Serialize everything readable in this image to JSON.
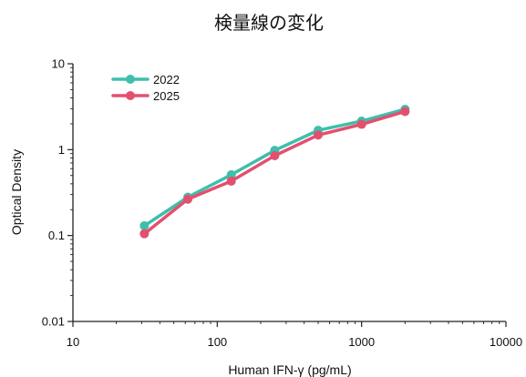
{
  "chart_data": {
    "type": "line",
    "title": "検量線の変化",
    "xlabel": "Human IFN-γ (pg/mL)",
    "ylabel": "Optical Density",
    "xscale": "log",
    "yscale": "log",
    "xlim": [
      10,
      10000
    ],
    "ylim": [
      0.01,
      10
    ],
    "x_ticks": [
      "10",
      "100",
      "1000",
      "10000"
    ],
    "y_ticks": [
      "0.01",
      "0.1",
      "1",
      "10"
    ],
    "grid": false,
    "legend_position": "top-left",
    "x": [
      31.25,
      62.5,
      125,
      250,
      500,
      1000,
      2000
    ],
    "series": [
      {
        "name": "2022",
        "color": "#3dbfac",
        "values": [
          0.13,
          0.28,
          0.51,
          0.98,
          1.68,
          2.15,
          2.95
        ]
      },
      {
        "name": "2025",
        "color": "#e3506e",
        "values": [
          0.105,
          0.265,
          0.43,
          0.85,
          1.48,
          1.97,
          2.78
        ]
      }
    ]
  }
}
